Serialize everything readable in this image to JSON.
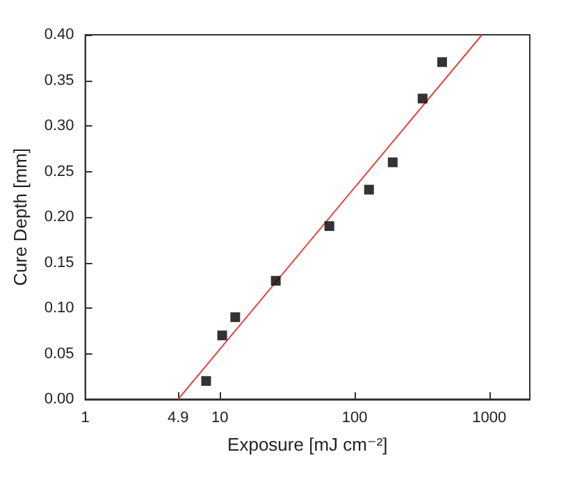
{
  "chart_data": {
    "type": "scatter",
    "xlabel": "Exposure [mJ cm⁻²]",
    "ylabel": "Cure Depth [mm]",
    "log": "x",
    "xlim": [
      1,
      2000
    ],
    "xticks": [
      1,
      4.9,
      10,
      100,
      1000
    ],
    "ylim": [
      0,
      0.4
    ],
    "yticks": [
      {
        "value": 0,
        "label": "0.00"
      },
      {
        "value": 0.05,
        "label": "0.05"
      },
      {
        "value": 0.1,
        "label": "0.10"
      },
      {
        "value": 0.15,
        "label": "0.15"
      },
      {
        "value": 0.2,
        "label": "0.20"
      },
      {
        "value": 0.25,
        "label": "0.25"
      },
      {
        "value": 0.3,
        "label": "0.30"
      },
      {
        "value": 0.35,
        "label": "0.35"
      },
      {
        "value": 0.4,
        "label": "0.40"
      }
    ],
    "grid": false,
    "series": [
      {
        "color": "#000000",
        "marker": "square",
        "x": [
          7.9,
          10.4,
          13,
          26,
          65,
          128,
          192,
          320,
          447
        ],
        "values": [
          0.02,
          0.07,
          0.09,
          0.13,
          0.19,
          0.23,
          0.26,
          0.33,
          0.37
        ]
      },
      {
        "type": "line",
        "color": "#e8413c",
        "marker": "none",
        "line_style": "solid",
        "x": [
          4.9,
          884
        ],
        "values": [
          0,
          0.4
        ]
      }
    ]
  }
}
